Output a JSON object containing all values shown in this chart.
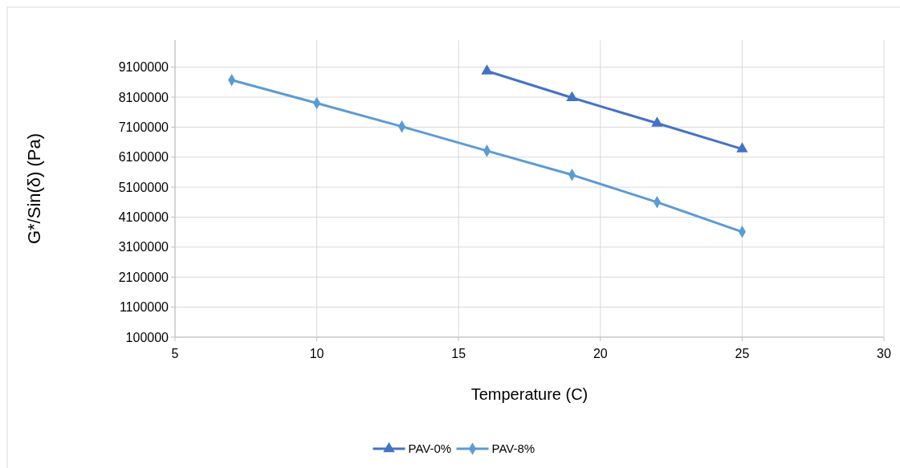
{
  "chart_data": {
    "type": "line",
    "xlabel": "Temperature (C)",
    "ylabel": "G*/Sin(δ) (Pa)",
    "xlim": [
      5,
      30
    ],
    "xticks": [
      5,
      10,
      15,
      20,
      25,
      30
    ],
    "ylim": [
      100000,
      10000000
    ],
    "yticks": [
      100000,
      1100000,
      2100000,
      3100000,
      4100000,
      5100000,
      6100000,
      7100000,
      8100000,
      9100000
    ],
    "grid": true,
    "legend": "bottom",
    "line_style": "solid",
    "series": [
      {
        "name": "PAV-0%",
        "color": "#4472c4",
        "marker": "triangle",
        "x": [
          16,
          19,
          22,
          25
        ],
        "values": [
          8970000,
          8080000,
          7230000,
          6370000
        ]
      },
      {
        "name": "PAV-8%",
        "color": "#5b9bd5",
        "marker": "diamond",
        "x": [
          7,
          10,
          13,
          16,
          19,
          22,
          25
        ],
        "values": [
          8670000,
          7900000,
          7120000,
          6310000,
          5510000,
          4600000,
          3610000
        ]
      }
    ]
  }
}
